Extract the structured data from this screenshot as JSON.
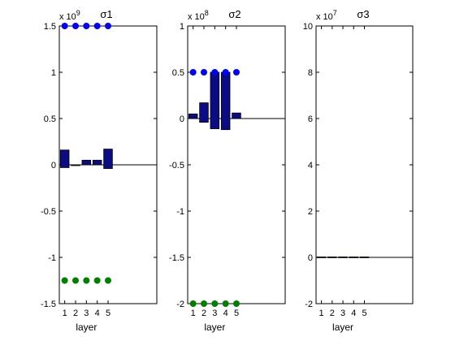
{
  "chart_data": [
    {
      "type": "bar",
      "title": "σ1",
      "exponent_label": "x 10",
      "exponent_power": "9",
      "xlabel": "layer",
      "ylabel": "",
      "grid": false,
      "categories": [
        "1",
        "2",
        "3",
        "4",
        "5"
      ],
      "xlim": [
        0.5,
        9.5
      ],
      "ylim": [
        -1.5,
        1.5
      ],
      "yticks": [
        -1.5,
        -1,
        -0.5,
        0,
        0.5,
        1,
        1.5
      ],
      "ytick_labels": [
        "-1.5",
        "-1",
        "-0.5",
        "0",
        "0.5",
        "1",
        "1.5"
      ],
      "bars": [
        {
          "x": 1,
          "top": 0.16,
          "bottom": -0.03
        },
        {
          "x": 2,
          "top": 0.0,
          "bottom": -0.005
        },
        {
          "x": 3,
          "top": 0.05,
          "bottom": 0.0
        },
        {
          "x": 4,
          "top": 0.05,
          "bottom": 0.0
        },
        {
          "x": 5,
          "top": 0.17,
          "bottom": -0.04
        }
      ],
      "upper_points": {
        "color": "#0000ff",
        "x": [
          1,
          2,
          3,
          4,
          5
        ],
        "y": [
          1.5,
          1.5,
          1.5,
          1.5,
          1.5
        ]
      },
      "lower_points": {
        "color": "#008000",
        "x": [
          1,
          2,
          3,
          4,
          5
        ],
        "y": [
          -1.25,
          -1.25,
          -1.25,
          -1.25,
          -1.25
        ]
      }
    },
    {
      "type": "bar",
      "title": "σ2",
      "exponent_label": "x 10",
      "exponent_power": "8",
      "xlabel": "layer",
      "ylabel": "",
      "grid": false,
      "categories": [
        "1",
        "2",
        "3",
        "4",
        "5"
      ],
      "xlim": [
        0.5,
        9.5
      ],
      "ylim": [
        -2,
        1
      ],
      "yticks": [
        -2,
        -1.5,
        -1,
        -0.5,
        0,
        0.5,
        1
      ],
      "ytick_labels": [
        "-2",
        "-1.5",
        "-1",
        "-0.5",
        "0",
        "0.5",
        "1"
      ],
      "bars": [
        {
          "x": 1,
          "top": 0.05,
          "bottom": 0.0
        },
        {
          "x": 2,
          "top": 0.17,
          "bottom": -0.04
        },
        {
          "x": 3,
          "top": 0.5,
          "bottom": -0.11
        },
        {
          "x": 4,
          "top": 0.5,
          "bottom": -0.12
        },
        {
          "x": 5,
          "top": 0.06,
          "bottom": 0.0
        }
      ],
      "upper_points": {
        "color": "#0000ff",
        "x": [
          1,
          2,
          3,
          4,
          5
        ],
        "y": [
          0.5,
          0.5,
          0.5,
          0.5,
          0.5
        ]
      },
      "lower_points": {
        "color": "#008000",
        "x": [
          1,
          2,
          3,
          4,
          5
        ],
        "y": [
          -2,
          -2,
          -2,
          -2,
          -2
        ]
      }
    },
    {
      "type": "bar",
      "title": "σ3",
      "exponent_label": "x 10",
      "exponent_power": "7",
      "xlabel": "layer",
      "ylabel": "",
      "grid": false,
      "categories": [
        "1",
        "2",
        "3",
        "4",
        "5"
      ],
      "xlim": [
        0.5,
        9.5
      ],
      "ylim": [
        -2,
        10
      ],
      "yticks": [
        -2,
        0,
        2,
        4,
        6,
        8,
        10
      ],
      "ytick_labels": [
        "-2",
        "0",
        "2",
        "4",
        "6",
        "8",
        "10"
      ],
      "bars": [
        {
          "x": 1,
          "top": 0.02,
          "bottom": 0.0
        },
        {
          "x": 2,
          "top": 0.02,
          "bottom": 0.0
        },
        {
          "x": 3,
          "top": 0.02,
          "bottom": 0.0
        },
        {
          "x": 4,
          "top": 0.02,
          "bottom": 0.0
        },
        {
          "x": 5,
          "top": 0.02,
          "bottom": 0.0
        }
      ],
      "upper_points": {
        "color": "#0000ff",
        "x": [],
        "y": []
      },
      "lower_points": {
        "color": "#008000",
        "x": [],
        "y": []
      }
    }
  ],
  "style": {
    "bar_fill": "#0b0b84",
    "bar_stroke": "#000000",
    "axis_color": "#000000",
    "background": "#ffffff"
  }
}
